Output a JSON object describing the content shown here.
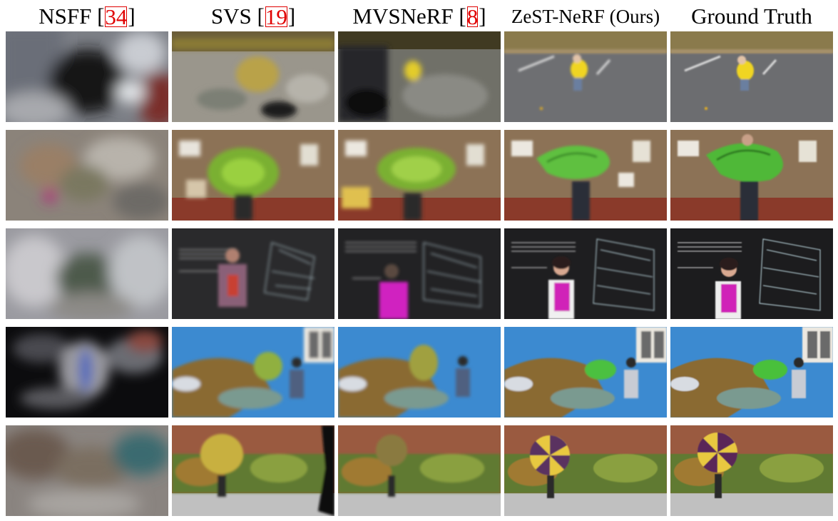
{
  "columns": [
    {
      "prefix": "NSFF [",
      "ref": "34",
      "suffix": "]"
    },
    {
      "prefix": "SVS [",
      "ref": "19",
      "suffix": "]"
    },
    {
      "prefix": "MVSNeRF [",
      "ref": "8",
      "suffix": "]"
    },
    {
      "label": "ZeST-NeRF (Ours)"
    },
    {
      "label": "Ground Truth"
    }
  ],
  "rows": [
    {
      "scene": "parking-lot-child-yellow-jacket"
    },
    {
      "scene": "bulletin-board-green-balloon"
    },
    {
      "scene": "chalkboard-woman-pink-top"
    },
    {
      "scene": "blue-mural-green-balloon"
    },
    {
      "scene": "garden-wall-umbrella"
    }
  ]
}
